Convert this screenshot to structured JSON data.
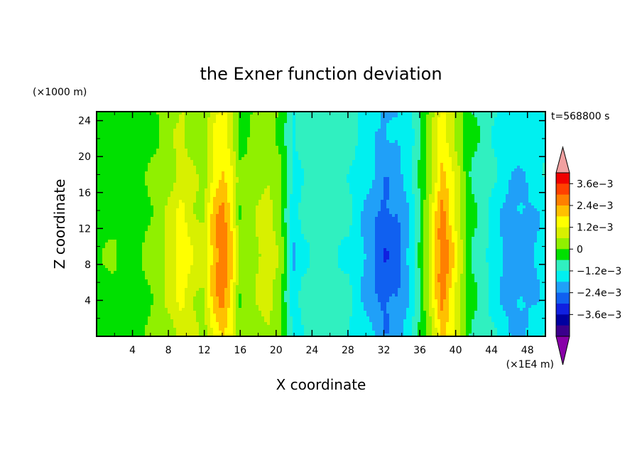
{
  "chart_data": {
    "type": "heatmap",
    "title": "the Exner function deviation",
    "xlabel": "X coordinate",
    "ylabel": "Z coordinate",
    "x_unit": "(×1E4 m)",
    "y_unit": "(×1000 m)",
    "time_label": "t=568800 s",
    "xlim": [
      0,
      50
    ],
    "ylim": [
      0,
      25
    ],
    "x_ticks": [
      "4",
      "8",
      "12",
      "16",
      "20",
      "24",
      "28",
      "32",
      "36",
      "40",
      "44",
      "48"
    ],
    "y_ticks": [
      "4",
      "8",
      "12",
      "16",
      "20",
      "24"
    ],
    "colorbar": {
      "levels": [
        -0.004,
        -0.0036,
        -0.003,
        -0.0024,
        -0.0018,
        -0.0012,
        -0.0006,
        0,
        0.0006,
        0.0012,
        0.0018,
        0.0024,
        0.003,
        0.0036,
        0.004
      ],
      "colors": [
        "#8800a8",
        "#3b008c",
        "#0000a0",
        "#1020e0",
        "#1060f0",
        "#20a0f8",
        "#00f0f0",
        "#30f0c0",
        "#00e000",
        "#90f000",
        "#d8f000",
        "#ffff00",
        "#ffc000",
        "#ff8000",
        "#ff4000",
        "#f00000",
        "#f0a0a0"
      ],
      "tick_labels": [
        "3.6e−3",
        "2.4e−3",
        "1.2e−3",
        "0",
        "−1.2e−3",
        "−2.4e−3",
        "−3.6e−3"
      ]
    },
    "x_profile": {
      "x": [
        0,
        2,
        3,
        5,
        6,
        8,
        9.5,
        11,
        12,
        13,
        14,
        15,
        16,
        17.5,
        19,
        20.5,
        22,
        23,
        25,
        28,
        30,
        32,
        33.5,
        35,
        37,
        38.5,
        40,
        41.5,
        44,
        46,
        48,
        50
      ],
      "value": [
        0.0004,
        0.0006,
        0.0002,
        0.0005,
        0.0008,
        0.0014,
        0.0022,
        0.0015,
        0.0013,
        0.0028,
        0.0036,
        0.0026,
        0.0008,
        0.0011,
        0.0017,
        0.0009,
        -0.0012,
        -0.0006,
        -0.0004,
        -0.0006,
        -0.0014,
        -0.0023,
        -0.0021,
        -0.0011,
        0.0012,
        0.0037,
        0.002,
        0.0002,
        -0.0008,
        -0.0016,
        -0.0015,
        -0.001
      ]
    }
  }
}
